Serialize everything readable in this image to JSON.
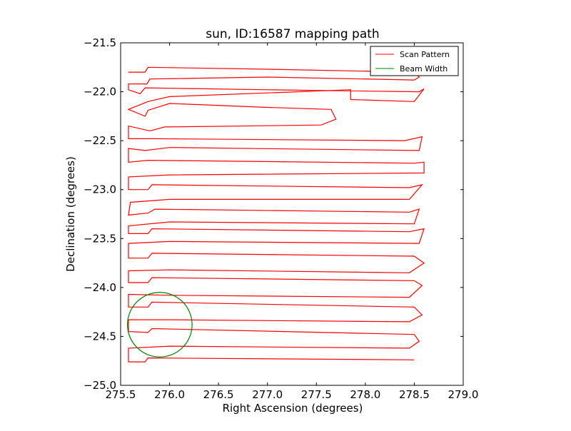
{
  "chart_data": {
    "type": "line",
    "title": "sun, ID:16587 mapping path",
    "xlabel": "Right Ascension (degrees)",
    "ylabel": "Declination (degrees)",
    "xlim": [
      275.5,
      279.0
    ],
    "ylim": [
      -25.0,
      -21.5
    ],
    "xticks": [
      "275.5",
      "276.0",
      "276.5",
      "277.0",
      "277.5",
      "278.0",
      "278.5",
      "279.0"
    ],
    "yticks": [
      "-21.5",
      "-22.0",
      "-22.5",
      "-23.0",
      "-23.5",
      "-24.0",
      "-24.5",
      "-25.0"
    ],
    "grid": false,
    "legend_position": "top-right",
    "colors": {
      "scan": "#ff0000",
      "beam": "#008000"
    },
    "series": [
      {
        "name": "Scan Pattern",
        "color": "#ff0000",
        "points": [
          [
            275.58,
            -21.8
          ],
          [
            275.75,
            -21.8
          ],
          [
            275.78,
            -21.75
          ],
          [
            277.0,
            -21.77
          ],
          [
            278.5,
            -21.8
          ],
          [
            278.55,
            -21.85
          ],
          [
            278.5,
            -21.88
          ],
          [
            277.0,
            -21.85
          ],
          [
            275.8,
            -21.87
          ],
          [
            275.77,
            -21.92
          ],
          [
            275.58,
            -21.92
          ],
          [
            275.58,
            -21.98
          ],
          [
            275.7,
            -22.02
          ],
          [
            275.75,
            -21.96
          ],
          [
            277.0,
            -21.98
          ],
          [
            278.55,
            -22.0
          ],
          [
            278.6,
            -21.97
          ],
          [
            278.5,
            -22.1
          ],
          [
            277.85,
            -22.08
          ],
          [
            277.85,
            -21.98
          ],
          [
            276.0,
            -22.05
          ],
          [
            275.78,
            -22.1
          ],
          [
            275.58,
            -22.18
          ],
          [
            275.75,
            -22.25
          ],
          [
            275.78,
            -22.19
          ],
          [
            276.0,
            -22.12
          ],
          [
            277.0,
            -22.16
          ],
          [
            277.65,
            -22.18
          ],
          [
            277.7,
            -22.28
          ],
          [
            277.55,
            -22.34
          ],
          [
            275.95,
            -22.36
          ],
          [
            275.8,
            -22.4
          ],
          [
            275.58,
            -22.35
          ],
          [
            275.58,
            -22.48
          ],
          [
            275.85,
            -22.48
          ],
          [
            278.4,
            -22.5
          ],
          [
            278.58,
            -22.46
          ],
          [
            278.55,
            -22.6
          ],
          [
            276.0,
            -22.57
          ],
          [
            275.75,
            -22.6
          ],
          [
            275.58,
            -22.58
          ],
          [
            275.58,
            -22.72
          ],
          [
            275.78,
            -22.7
          ],
          [
            278.5,
            -22.73
          ],
          [
            278.6,
            -22.72
          ],
          [
            278.6,
            -22.83
          ],
          [
            276.0,
            -22.85
          ],
          [
            275.58,
            -22.87
          ],
          [
            275.58,
            -23.0
          ],
          [
            275.78,
            -23.0
          ],
          [
            275.82,
            -22.95
          ],
          [
            278.45,
            -22.98
          ],
          [
            278.58,
            -22.95
          ],
          [
            278.45,
            -23.1
          ],
          [
            276.0,
            -23.1
          ],
          [
            275.6,
            -23.13
          ],
          [
            275.58,
            -23.26
          ],
          [
            275.78,
            -23.24
          ],
          [
            275.85,
            -23.2
          ],
          [
            278.45,
            -23.23
          ],
          [
            278.55,
            -23.2
          ],
          [
            278.5,
            -23.35
          ],
          [
            276.0,
            -23.33
          ],
          [
            275.58,
            -23.37
          ],
          [
            275.58,
            -23.45
          ],
          [
            275.78,
            -23.45
          ],
          [
            275.82,
            -23.4
          ],
          [
            278.45,
            -23.43
          ],
          [
            278.6,
            -23.4
          ],
          [
            278.55,
            -23.55
          ],
          [
            276.0,
            -23.53
          ],
          [
            275.58,
            -23.55
          ],
          [
            275.58,
            -23.7
          ],
          [
            275.78,
            -23.7
          ],
          [
            275.82,
            -23.65
          ],
          [
            278.5,
            -23.68
          ],
          [
            278.6,
            -23.75
          ],
          [
            278.45,
            -23.85
          ],
          [
            276.0,
            -23.82
          ],
          [
            275.58,
            -23.83
          ],
          [
            275.58,
            -23.95
          ],
          [
            275.78,
            -23.95
          ],
          [
            275.82,
            -23.9
          ],
          [
            278.5,
            -23.93
          ],
          [
            278.58,
            -23.98
          ],
          [
            278.45,
            -24.1
          ],
          [
            276.0,
            -24.08
          ],
          [
            275.58,
            -24.07
          ],
          [
            275.58,
            -24.2
          ],
          [
            275.78,
            -24.2
          ],
          [
            275.82,
            -24.15
          ],
          [
            278.5,
            -24.2
          ],
          [
            278.58,
            -24.28
          ],
          [
            278.45,
            -24.35
          ],
          [
            276.0,
            -24.33
          ],
          [
            275.58,
            -24.33
          ],
          [
            275.58,
            -24.45
          ],
          [
            275.78,
            -24.46
          ],
          [
            275.82,
            -24.42
          ],
          [
            278.5,
            -24.48
          ],
          [
            278.55,
            -24.55
          ],
          [
            278.45,
            -24.62
          ],
          [
            276.0,
            -24.6
          ],
          [
            275.58,
            -24.62
          ],
          [
            275.58,
            -24.76
          ],
          [
            275.75,
            -24.76
          ],
          [
            275.78,
            -24.72
          ],
          [
            278.5,
            -24.74
          ]
        ]
      },
      {
        "name": "Beam Width",
        "color": "#008000",
        "circle": {
          "cx": 275.9,
          "cy": -24.38,
          "rx": 0.33,
          "ry": 0.33
        }
      }
    ]
  }
}
